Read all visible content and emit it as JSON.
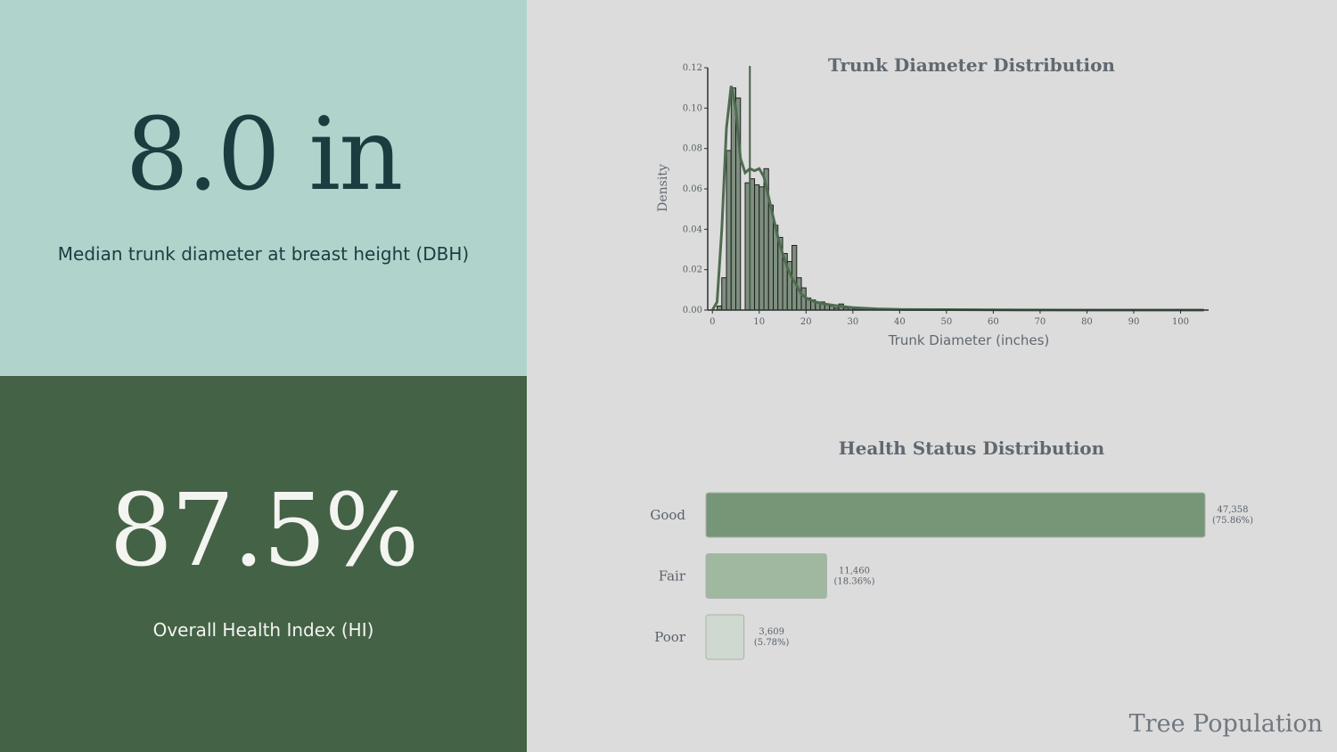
{
  "kpis": {
    "dbh": {
      "value": "8.0 in",
      "label": "Median trunk diameter at breast height (DBH)"
    },
    "health": {
      "value": "87.5%",
      "label": "Overall Health Index (HI)"
    }
  },
  "footer": {
    "title": "Tree Population"
  },
  "colors": {
    "accent_dark": "#446246",
    "accent_light": "#b0d4cc",
    "bar_good": "#779677",
    "bar_fair": "#9fb89f",
    "bar_poor": "#cfd9cf",
    "hist_fill": "#7e8f7f",
    "kde_line": "#4f6b51"
  },
  "chart_data": [
    {
      "type": "bar",
      "subtype": "histogram+kde",
      "title": "Trunk Diameter Distribution",
      "xlabel": "Trunk Diameter (inches)",
      "ylabel": "Density",
      "xlim": [
        -1,
        106
      ],
      "ylim": [
        0,
        0.12
      ],
      "xticks": [
        0,
        10,
        20,
        30,
        40,
        50,
        60,
        70,
        80,
        90,
        100
      ],
      "yticks": [
        "0.00",
        "0.02",
        "0.04",
        "0.06",
        "0.08",
        "0.10",
        "0.12"
      ],
      "median_line": 8.0,
      "bin_width": 1,
      "bins": [
        [
          1,
          0.002
        ],
        [
          2,
          0.016
        ],
        [
          3,
          0.079
        ],
        [
          4,
          0.11
        ],
        [
          5,
          0.105
        ],
        [
          6,
          0.0
        ],
        [
          7,
          0.063
        ],
        [
          8,
          0.065
        ],
        [
          9,
          0.062
        ],
        [
          10,
          0.061
        ],
        [
          11,
          0.07
        ],
        [
          12,
          0.052
        ],
        [
          13,
          0.042
        ],
        [
          14,
          0.036
        ],
        [
          15,
          0.028
        ],
        [
          16,
          0.024
        ],
        [
          17,
          0.032
        ],
        [
          18,
          0.016
        ],
        [
          19,
          0.011
        ],
        [
          20,
          0.006
        ],
        [
          21,
          0.005
        ],
        [
          22,
          0.004
        ],
        [
          23,
          0.004
        ],
        [
          24,
          0.003
        ],
        [
          25,
          0.002
        ],
        [
          26,
          0.001
        ],
        [
          27,
          0.003
        ],
        [
          28,
          0.001
        ],
        [
          29,
          0.001
        ],
        [
          30,
          0.0005
        ],
        [
          31,
          0.0005
        ],
        [
          32,
          0.0004
        ],
        [
          33,
          0.0003
        ],
        [
          34,
          0.0002
        ],
        [
          35,
          0.0002
        ]
      ],
      "kde": [
        [
          0,
          0.0
        ],
        [
          1,
          0.004
        ],
        [
          2,
          0.04
        ],
        [
          3,
          0.09
        ],
        [
          4,
          0.111
        ],
        [
          5,
          0.1
        ],
        [
          6,
          0.075
        ],
        [
          7,
          0.068
        ],
        [
          8,
          0.07
        ],
        [
          9,
          0.069
        ],
        [
          10,
          0.07
        ],
        [
          11,
          0.066
        ],
        [
          12,
          0.056
        ],
        [
          13,
          0.046
        ],
        [
          14,
          0.036
        ],
        [
          15,
          0.028
        ],
        [
          16,
          0.021
        ],
        [
          17,
          0.016
        ],
        [
          18,
          0.012
        ],
        [
          19,
          0.008
        ],
        [
          20,
          0.006
        ],
        [
          22,
          0.004
        ],
        [
          24,
          0.003
        ],
        [
          27,
          0.002
        ],
        [
          30,
          0.0012
        ],
        [
          35,
          0.0006
        ],
        [
          40,
          0.0003
        ],
        [
          50,
          0.0002
        ],
        [
          60,
          0.0001
        ],
        [
          80,
          0.0
        ],
        [
          105,
          0.0
        ]
      ]
    },
    {
      "type": "bar",
      "orientation": "horizontal",
      "title": "Health Status Distribution",
      "categories": [
        "Good",
        "Fair",
        "Poor"
      ],
      "values": [
        47358,
        11460,
        3609
      ],
      "labels": [
        [
          "47,358",
          "(75.86%)"
        ],
        [
          "11,460",
          "(18.36%)"
        ],
        [
          "3,609",
          "(5.78%)"
        ]
      ]
    }
  ]
}
